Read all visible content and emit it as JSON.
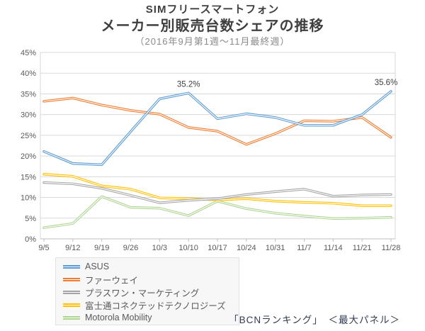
{
  "title": {
    "line1": "SIMフリースマートフォン",
    "line2": "メーカー別販売台数シェアの推移",
    "subtitle": "（2016年9月第1週～11月最終週）"
  },
  "credit": "「BCNランキング」　＜最大パネル＞",
  "chart_data": {
    "type": "line",
    "title": "SIMフリースマートフォン メーカー別販売台数シェアの推移（2016年9月第1週～11月最終週）",
    "categories": [
      "9/5",
      "9/12",
      "9/19",
      "9/26",
      "10/3",
      "10/10",
      "10/17",
      "10/24",
      "10/31",
      "11/7",
      "11/14",
      "11/21",
      "11/28"
    ],
    "series": [
      {
        "name": "ASUS",
        "color": "#5B9BD5",
        "values": [
          21.1,
          18.2,
          17.9,
          25.9,
          33.8,
          35.2,
          29.0,
          30.2,
          29.3,
          27.4,
          27.4,
          30.0,
          35.6
        ]
      },
      {
        "name": "ファーウェイ",
        "color": "#ED7D31",
        "values": [
          33.2,
          34.0,
          32.3,
          31.0,
          30.1,
          26.9,
          26.0,
          22.8,
          25.4,
          28.5,
          28.4,
          29.3,
          24.5
        ]
      },
      {
        "name": "プラスワン・マーケティング",
        "color": "#A5A5A5",
        "values": [
          13.6,
          13.3,
          12.2,
          10.5,
          8.7,
          9.3,
          9.7,
          10.7,
          11.4,
          12.0,
          10.3,
          10.6,
          10.7
        ]
      },
      {
        "name": "富士通コネクテッドテクノロジーズ",
        "color": "#FFC000",
        "values": [
          15.6,
          15.1,
          12.8,
          12.0,
          9.9,
          9.7,
          9.4,
          9.7,
          9.1,
          8.8,
          8.6,
          8.0,
          8.0
        ]
      },
      {
        "name": "Motorola Mobility",
        "color": "#AED491",
        "values": [
          2.7,
          3.7,
          10.2,
          7.6,
          7.4,
          5.6,
          9.1,
          7.3,
          6.2,
          5.5,
          4.9,
          5.0,
          5.2
        ]
      }
    ],
    "ylim": [
      0,
      45
    ],
    "y_tick_step": 5,
    "y_tick_labels": [
      "0%",
      "5%",
      "10%",
      "15%",
      "20%",
      "25%",
      "30%",
      "35%",
      "40%",
      "45%"
    ],
    "grid": true,
    "line_style": "double-white-core",
    "legend_position": "bottom-left",
    "annotations": [
      {
        "series": "ASUS",
        "category": "10/10",
        "index": 5,
        "text": "35.2%"
      },
      {
        "series": "ASUS",
        "category": "11/28",
        "index": 12,
        "text": "35.6%"
      }
    ],
    "colors": {
      "gridline": "#D9D9D9",
      "axis": "#BFBFBF",
      "axis_text": "#595959",
      "data_label": "#404040"
    }
  }
}
